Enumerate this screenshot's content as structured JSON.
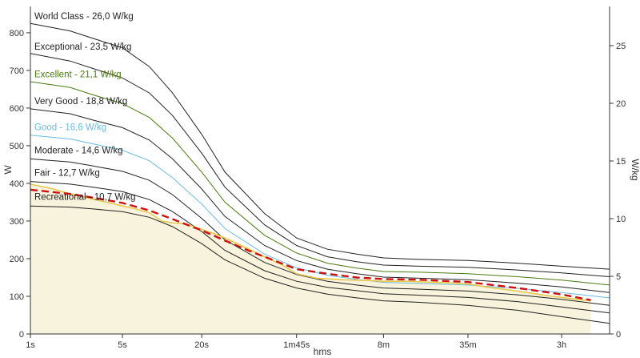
{
  "chart_data": {
    "type": "line",
    "xlabel": "hms",
    "ylabel_left": "W",
    "ylabel_right": "W/kg",
    "x_ticks": [
      "1s",
      "5s",
      "20s",
      "1m45s",
      "8m",
      "35m",
      "3h"
    ],
    "x_ticks_seconds": [
      1,
      5,
      20,
      105,
      480,
      2100,
      10800
    ],
    "xlim_seconds": [
      1,
      25000
    ],
    "x_scale": "log",
    "y_left_ticks": [
      0,
      100,
      200,
      300,
      400,
      500,
      600,
      700,
      800
    ],
    "y_left_lim": [
      0,
      870
    ],
    "y_right_ticks": [
      0,
      5,
      10,
      15,
      20,
      25
    ],
    "y_right_lim": [
      0,
      28.4
    ],
    "grid": false,
    "series": [
      {
        "name": "World Class - 26,0 W/kg",
        "color": "#222222",
        "x": [
          1,
          2,
          3,
          5,
          8,
          12,
          20,
          30,
          60,
          105,
          180,
          300,
          480,
          900,
          2100,
          5000,
          10800,
          25000
        ],
        "y": [
          825,
          805,
          785,
          760,
          710,
          640,
          530,
          430,
          320,
          255,
          225,
          212,
          202,
          198,
          195,
          188,
          180,
          172
        ]
      },
      {
        "name": "Exceptional - 23,5 W/kg",
        "color": "#222222",
        "x": [
          1,
          2,
          3,
          5,
          8,
          12,
          20,
          30,
          60,
          105,
          180,
          300,
          480,
          900,
          2100,
          5000,
          10800,
          25000
        ],
        "y": [
          745,
          725,
          705,
          680,
          640,
          580,
          480,
          390,
          290,
          235,
          205,
          192,
          183,
          180,
          177,
          170,
          162,
          152
        ]
      },
      {
        "name": "Excellent - 21,1 W/kg",
        "color": "#4a7a10",
        "x": [
          1,
          2,
          3,
          5,
          8,
          12,
          20,
          30,
          60,
          105,
          180,
          300,
          480,
          900,
          2100,
          5000,
          10800,
          25000
        ],
        "y": [
          670,
          655,
          635,
          612,
          575,
          520,
          430,
          350,
          262,
          215,
          188,
          175,
          166,
          164,
          160,
          152,
          143,
          130
        ]
      },
      {
        "name": "Very Good - 18,8 W/kg",
        "color": "#222222",
        "x": [
          1,
          2,
          3,
          5,
          8,
          12,
          20,
          30,
          60,
          105,
          180,
          300,
          480,
          900,
          2100,
          5000,
          10800,
          25000
        ],
        "y": [
          598,
          585,
          568,
          548,
          515,
          465,
          385,
          312,
          235,
          195,
          172,
          160,
          151,
          148,
          144,
          135,
          125,
          110
        ]
      },
      {
        "name": "Good - 16,6 W/kg",
        "color": "#6bbbe0",
        "x": [
          1,
          2,
          3,
          5,
          8,
          12,
          20,
          30,
          60,
          105,
          180,
          300,
          480,
          900,
          2100,
          5000,
          10800,
          25000
        ],
        "y": [
          528,
          518,
          505,
          488,
          460,
          415,
          345,
          280,
          212,
          176,
          156,
          145,
          137,
          134,
          130,
          121,
          110,
          96
        ]
      },
      {
        "name": "Moderate - 14,6 W/kg",
        "color": "#222222",
        "x": [
          1,
          2,
          3,
          5,
          8,
          12,
          20,
          30,
          60,
          105,
          180,
          300,
          480,
          900,
          2100,
          5000,
          10800,
          25000
        ],
        "y": [
          465,
          457,
          446,
          432,
          408,
          370,
          307,
          250,
          190,
          158,
          140,
          130,
          122,
          119,
          114,
          104,
          92,
          76
        ]
      },
      {
        "name": "Fair - 12,7 W/kg",
        "color": "#222222",
        "x": [
          1,
          2,
          3,
          5,
          8,
          12,
          20,
          30,
          60,
          105,
          180,
          300,
          480,
          900,
          2100,
          5000,
          10800,
          25000
        ],
        "y": [
          405,
          398,
          390,
          378,
          357,
          325,
          272,
          222,
          168,
          140,
          124,
          115,
          107,
          103,
          97,
          86,
          72,
          56
        ]
      },
      {
        "name": "Recreational - 10,7 W/kg",
        "color": "#222222",
        "x": [
          1,
          2,
          3,
          5,
          8,
          12,
          20,
          30,
          60,
          105,
          180,
          300,
          480,
          900,
          2100,
          5000,
          10800,
          25000
        ],
        "y": [
          340,
          337,
          332,
          325,
          310,
          285,
          240,
          197,
          148,
          122,
          106,
          96,
          88,
          84,
          76,
          63,
          46,
          28
        ]
      }
    ],
    "effort": {
      "color": "#e8c74a",
      "fill": "#f7f3dc",
      "x": [
        1,
        1.5,
        2,
        3,
        4,
        5,
        6,
        8,
        10,
        12,
        15,
        20,
        25,
        30,
        40,
        60,
        80,
        105,
        150,
        240,
        360,
        480,
        700,
        1000,
        1500,
        2100,
        3000,
        5000,
        8000,
        12000,
        18000
      ],
      "y": [
        398,
        385,
        372,
        358,
        348,
        340,
        334,
        322,
        300,
        295,
        293,
        278,
        266,
        255,
        235,
        205,
        185,
        160,
        148,
        144,
        142,
        140,
        140,
        138,
        136,
        133,
        124,
        114,
        103,
        95,
        88
      ]
    },
    "model": {
      "color": "#cc1111",
      "dash": "dashed",
      "x": [
        1,
        2,
        3,
        5,
        8,
        12,
        20,
        30,
        45,
        60,
        105,
        180,
        300,
        480,
        900,
        2100,
        5000,
        10800,
        18000
      ],
      "y": [
        383,
        372,
        362,
        348,
        328,
        305,
        275,
        248,
        222,
        205,
        172,
        160,
        150,
        146,
        144,
        138,
        122,
        105,
        90
      ]
    }
  }
}
